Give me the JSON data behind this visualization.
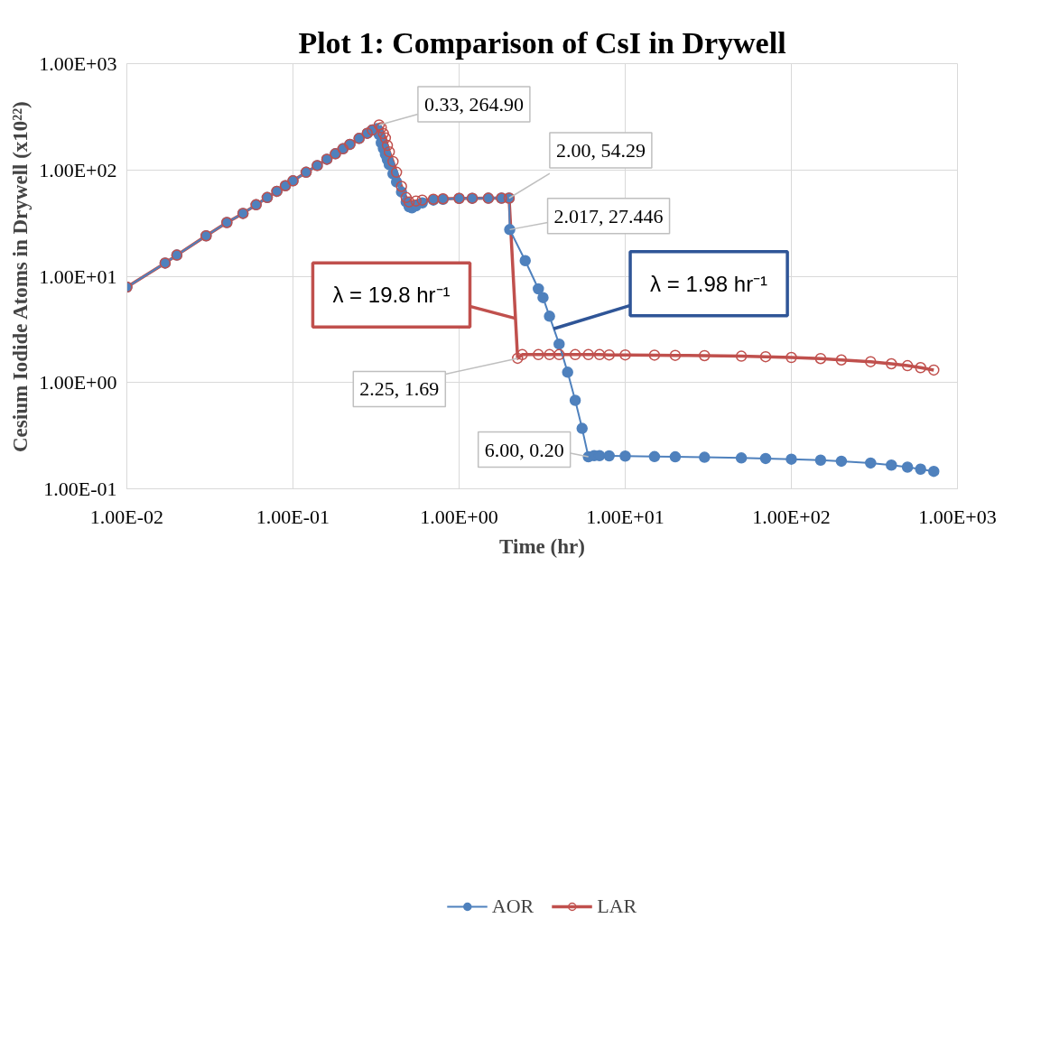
{
  "chart_data": {
    "type": "line",
    "title": "Plot 1: Comparison of CsI in Drywell",
    "xlabel": "Time (hr)",
    "ylabel": "Cesium Iodide Atoms in Drywell (x10²²)",
    "log": "xy",
    "grid": true,
    "legend": "bottom",
    "marker": "circle",
    "line_style": "solid",
    "xlim": [
      0.01,
      1000
    ],
    "ylim": [
      0.1,
      1000
    ],
    "xticks": [
      {
        "value": 0.01,
        "label": "1.00E-02"
      },
      {
        "value": 0.1,
        "label": "1.00E-01"
      },
      {
        "value": 1,
        "label": "1.00E+00"
      },
      {
        "value": 10,
        "label": "1.00E+01"
      },
      {
        "value": 100,
        "label": "1.00E+02"
      },
      {
        "value": 1000,
        "label": "1.00E+03"
      }
    ],
    "yticks": [
      {
        "value": 0.1,
        "label": "1.00E-01"
      },
      {
        "value": 1,
        "label": "1.00E+00"
      },
      {
        "value": 10,
        "label": "1.00E+01"
      },
      {
        "value": 100,
        "label": "1.00E+02"
      },
      {
        "value": 1000,
        "label": "1.00E+03"
      }
    ],
    "series": [
      {
        "name": "AOR",
        "color": "#4f81bd",
        "x": [
          0.01,
          0.017,
          0.02,
          0.03,
          0.04,
          0.05,
          0.06,
          0.07,
          0.08,
          0.09,
          0.1,
          0.12,
          0.14,
          0.16,
          0.18,
          0.2,
          0.22,
          0.25,
          0.28,
          0.3,
          0.32,
          0.33,
          0.34,
          0.35,
          0.36,
          0.37,
          0.38,
          0.4,
          0.42,
          0.45,
          0.48,
          0.5,
          0.52,
          0.55,
          0.6,
          0.7,
          0.8,
          1,
          1.2,
          1.5,
          1.8,
          2.0,
          2.017,
          2.5,
          3.0,
          3.2,
          3.5,
          4.0,
          4.5,
          5.0,
          5.5,
          6.0,
          6.5,
          7,
          8,
          10,
          15,
          20,
          30,
          50,
          70,
          100,
          150,
          200,
          300,
          400,
          500,
          600,
          720
        ],
        "values": [
          7.9,
          13.3,
          15.8,
          24,
          32,
          39,
          47,
          55,
          63,
          71,
          79,
          95,
          110,
          126,
          142,
          158,
          174,
          198,
          221,
          237,
          245,
          215,
          180,
          160,
          140,
          125,
          112,
          92,
          77,
          62,
          50,
          45,
          44,
          46,
          49,
          52,
          53,
          54,
          54.1,
          54.2,
          54.25,
          54.29,
          27.446,
          14,
          7.6,
          6.3,
          4.2,
          2.3,
          1.25,
          0.68,
          0.37,
          0.2,
          0.205,
          0.205,
          0.204,
          0.203,
          0.201,
          0.2,
          0.198,
          0.195,
          0.193,
          0.19,
          0.186,
          0.182,
          0.175,
          0.167,
          0.16,
          0.153,
          0.146
        ]
      },
      {
        "name": "LAR",
        "color": "#c0504d",
        "x": [
          0.01,
          0.017,
          0.02,
          0.03,
          0.04,
          0.05,
          0.06,
          0.07,
          0.08,
          0.09,
          0.1,
          0.12,
          0.14,
          0.16,
          0.18,
          0.2,
          0.22,
          0.25,
          0.28,
          0.3,
          0.33,
          0.34,
          0.35,
          0.36,
          0.37,
          0.38,
          0.4,
          0.42,
          0.45,
          0.48,
          0.5,
          0.55,
          0.6,
          0.7,
          0.8,
          1,
          1.2,
          1.5,
          1.8,
          2.0,
          2.25,
          2.4,
          3,
          3.5,
          4,
          5,
          6,
          7,
          8,
          10,
          15,
          20,
          30,
          50,
          70,
          100,
          150,
          200,
          300,
          400,
          500,
          600,
          720
        ],
        "values": [
          7.9,
          13.3,
          15.8,
          24,
          32,
          39,
          47,
          55,
          63,
          71,
          79,
          95,
          110,
          126,
          142,
          158,
          174,
          198,
          221,
          237,
          264.9,
          250,
          220,
          200,
          170,
          148,
          120,
          95,
          70,
          55,
          50,
          51,
          52,
          53,
          53.5,
          54,
          54.1,
          54.2,
          54.25,
          54.29,
          1.69,
          1.83,
          1.83,
          1.83,
          1.83,
          1.83,
          1.83,
          1.83,
          1.82,
          1.82,
          1.81,
          1.8,
          1.79,
          1.77,
          1.75,
          1.72,
          1.68,
          1.63,
          1.57,
          1.5,
          1.44,
          1.38,
          1.31
        ]
      }
    ],
    "annotations": [
      {
        "text": "0.33, 264.90",
        "x": 0.33,
        "y": 264.9
      },
      {
        "text": "2.00, 54.29",
        "x": 2.0,
        "y": 54.29
      },
      {
        "text": "2.017, 27.446",
        "x": 2.017,
        "y": 27.446
      },
      {
        "text": "2.25, 1.69",
        "x": 2.25,
        "y": 1.69
      },
      {
        "text": "6.00, 0.20",
        "x": 6.0,
        "y": 0.2
      },
      {
        "text": "λ = 19.8 hr⁻¹",
        "x": 2.2,
        "y": 4.0
      },
      {
        "text": "λ = 1.98 hr⁻¹",
        "x": 3.7,
        "y": 3.2
      }
    ]
  }
}
